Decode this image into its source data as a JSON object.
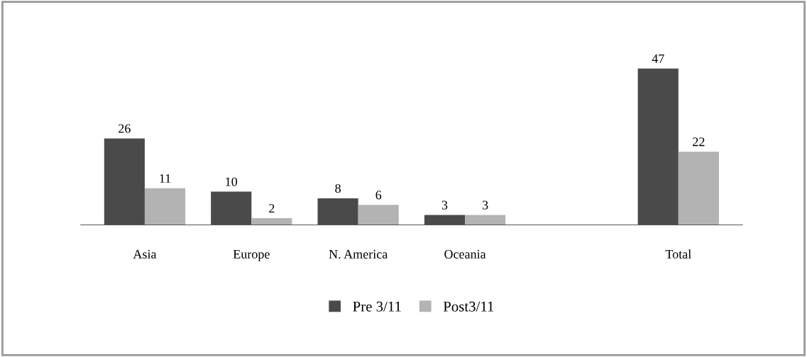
{
  "chart_data": {
    "type": "bar",
    "categories": [
      "Asia",
      "Europe",
      "N. America",
      "Oceania",
      null,
      "Total"
    ],
    "series": [
      {
        "name": "Pre 3/11",
        "color": "#4a4a4a",
        "values": [
          26,
          10,
          8,
          3,
          null,
          47
        ]
      },
      {
        "name": "Post3/11",
        "color": "#b3b3b3",
        "values": [
          11,
          2,
          6,
          3,
          null,
          22
        ]
      }
    ],
    "data_labels": true,
    "legend": "bottom",
    "grid": false
  }
}
